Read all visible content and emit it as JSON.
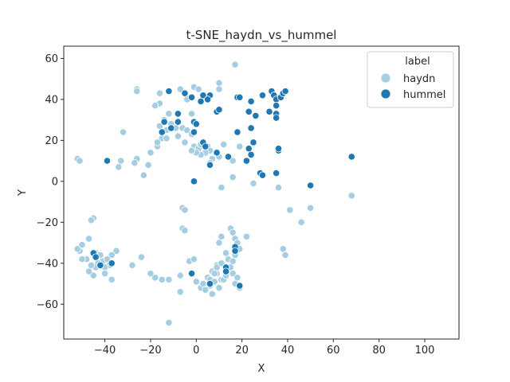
{
  "chart_data": {
    "type": "scatter",
    "title": "t-SNE_haydn_vs_hummel",
    "xlabel": "X",
    "ylabel": "Y",
    "xlim": [
      -58,
      115
    ],
    "ylim": [
      -77,
      66
    ],
    "xticks": [
      "−40",
      "−20",
      "0",
      "20",
      "40",
      "60",
      "80",
      "100"
    ],
    "xtick_values": [
      -40,
      -20,
      0,
      20,
      40,
      60,
      80,
      100
    ],
    "yticks": [
      "−60",
      "−40",
      "−20",
      "0",
      "20",
      "40",
      "60"
    ],
    "ytick_values": [
      -60,
      -40,
      -20,
      0,
      20,
      40,
      60
    ],
    "grid": false,
    "legend": {
      "title": "label",
      "placement": "top-right",
      "entries": [
        "haydn",
        "hummel"
      ]
    },
    "series": [
      {
        "name": "haydn",
        "color": "#a6cee3",
        "points": [
          [
            17,
            57
          ],
          [
            10,
            48
          ],
          [
            10,
            45
          ],
          [
            -1,
            46
          ],
          [
            1,
            45
          ],
          [
            -7,
            45
          ],
          [
            -26,
            45
          ],
          [
            -26,
            44
          ],
          [
            -16,
            43
          ],
          [
            -16,
            38
          ],
          [
            -18,
            37
          ],
          [
            -4,
            40
          ],
          [
            -2,
            33
          ],
          [
            -12,
            33
          ],
          [
            -14,
            30
          ],
          [
            -11,
            28
          ],
          [
            -16,
            27
          ],
          [
            -13,
            25
          ],
          [
            -9,
            26
          ],
          [
            -6,
            26
          ],
          [
            -4,
            25
          ],
          [
            -2,
            23
          ],
          [
            -8,
            22
          ],
          [
            -15,
            21
          ],
          [
            -13,
            21
          ],
          [
            -17,
            17
          ],
          [
            -17,
            19
          ],
          [
            -20,
            14
          ],
          [
            -21,
            8
          ],
          [
            -26,
            11
          ],
          [
            -27,
            9
          ],
          [
            -23,
            3
          ],
          [
            -33,
            10
          ],
          [
            -34,
            7
          ],
          [
            -32,
            24
          ],
          [
            -52,
            11
          ],
          [
            -51,
            10
          ],
          [
            -5,
            19
          ],
          [
            -1,
            17
          ],
          [
            1,
            16
          ],
          [
            2,
            18
          ],
          [
            3,
            19
          ],
          [
            5,
            17
          ],
          [
            6,
            15
          ],
          [
            4,
            14
          ],
          [
            2,
            13
          ],
          [
            0,
            14
          ],
          [
            -2,
            15
          ],
          [
            7,
            11
          ],
          [
            6,
            9
          ],
          [
            10,
            12
          ],
          [
            12,
            18
          ],
          [
            19,
            17
          ],
          [
            16,
            10
          ],
          [
            16,
            2
          ],
          [
            11,
            -3
          ],
          [
            25,
            -1
          ],
          [
            36,
            -3
          ],
          [
            41,
            -14
          ],
          [
            46,
            -20
          ],
          [
            50,
            -13
          ],
          [
            68,
            -7
          ],
          [
            38,
            -33
          ],
          [
            39,
            -36
          ],
          [
            -6,
            -13
          ],
          [
            -5,
            -14
          ],
          [
            -6,
            -23
          ],
          [
            -5,
            -24
          ],
          [
            -3,
            -39
          ],
          [
            -1,
            -38
          ],
          [
            -7,
            -46
          ],
          [
            -7,
            -54
          ],
          [
            -12,
            -48
          ],
          [
            -15,
            -48
          ],
          [
            -18,
            -47
          ],
          [
            -20,
            -45
          ],
          [
            -12,
            -69
          ],
          [
            -28,
            -41
          ],
          [
            -24,
            -37
          ],
          [
            -35,
            -34
          ],
          [
            -37,
            -36
          ],
          [
            -38,
            -41
          ],
          [
            -37,
            -48
          ],
          [
            -40,
            -42
          ],
          [
            -41,
            -39
          ],
          [
            -43,
            -40
          ],
          [
            -44,
            -42
          ],
          [
            -46,
            -41
          ],
          [
            -45,
            -46
          ],
          [
            -47,
            -44
          ],
          [
            -48,
            -38
          ],
          [
            -50,
            -38
          ],
          [
            -51,
            -34
          ],
          [
            -52,
            -33
          ],
          [
            -50,
            -31
          ],
          [
            -47,
            -28
          ],
          [
            -45,
            -18
          ],
          [
            -46,
            -19
          ],
          [
            -44,
            -35
          ],
          [
            -42,
            -36
          ],
          [
            -39,
            -38
          ],
          [
            -40,
            -45
          ],
          [
            0,
            -49
          ],
          [
            2,
            -52
          ],
          [
            3,
            -50
          ],
          [
            5,
            -47
          ],
          [
            6,
            -48
          ],
          [
            8,
            -49
          ],
          [
            6,
            -51
          ],
          [
            4,
            -53
          ],
          [
            7,
            -55
          ],
          [
            10,
            -52
          ],
          [
            11,
            -48
          ],
          [
            9,
            -45
          ],
          [
            7,
            -44
          ],
          [
            9,
            -41
          ],
          [
            10,
            -30
          ],
          [
            11,
            -27
          ],
          [
            13,
            -35
          ],
          [
            14,
            -38
          ],
          [
            15,
            -23
          ],
          [
            16,
            -25
          ],
          [
            17,
            -28
          ],
          [
            18,
            -30
          ],
          [
            19,
            -33
          ],
          [
            17,
            -36
          ],
          [
            16,
            -39
          ],
          [
            15,
            -42
          ],
          [
            16,
            -45
          ],
          [
            18,
            -47
          ],
          [
            17,
            -50
          ],
          [
            19,
            -52
          ],
          [
            22,
            -27
          ],
          [
            12,
            -48
          ],
          [
            13,
            -46
          ],
          [
            8,
            -45
          ],
          [
            9,
            -42
          ],
          [
            11,
            -40
          ]
        ]
      },
      {
        "name": "hummel",
        "color": "#1f78b4",
        "points": [
          [
            -12,
            44
          ],
          [
            -5,
            43
          ],
          [
            -2,
            41
          ],
          [
            3,
            42
          ],
          [
            6,
            42
          ],
          [
            5,
            40
          ],
          [
            2,
            39
          ],
          [
            9,
            34
          ],
          [
            10,
            35
          ],
          [
            -8,
            33
          ],
          [
            -14,
            29
          ],
          [
            -15,
            24
          ],
          [
            -11,
            26
          ],
          [
            -8,
            29
          ],
          [
            -1,
            29
          ],
          [
            0,
            28
          ],
          [
            -1,
            24
          ],
          [
            3,
            19
          ],
          [
            4,
            17
          ],
          [
            6,
            8
          ],
          [
            9,
            14
          ],
          [
            -1,
            0
          ],
          [
            -39,
            10
          ],
          [
            14,
            12
          ],
          [
            18,
            41
          ],
          [
            19,
            41
          ],
          [
            24,
            39
          ],
          [
            23,
            34
          ],
          [
            26,
            32
          ],
          [
            24,
            26
          ],
          [
            18,
            24
          ],
          [
            23,
            16
          ],
          [
            25,
            19
          ],
          [
            24,
            13
          ],
          [
            22,
            10
          ],
          [
            28,
            4
          ],
          [
            29,
            3
          ],
          [
            29,
            42
          ],
          [
            33,
            44
          ],
          [
            34,
            42
          ],
          [
            35,
            40
          ],
          [
            37,
            41
          ],
          [
            38,
            43
          ],
          [
            39,
            44
          ],
          [
            35,
            37
          ],
          [
            32,
            34
          ],
          [
            35,
            33
          ],
          [
            35,
            31
          ],
          [
            36,
            15
          ],
          [
            36,
            16
          ],
          [
            35,
            4
          ],
          [
            50,
            -2
          ],
          [
            68,
            12
          ],
          [
            -45,
            -35
          ],
          [
            -44,
            -37
          ],
          [
            -37,
            -40
          ],
          [
            -42,
            -41
          ],
          [
            13,
            -42
          ],
          [
            13,
            -44
          ],
          [
            17,
            -32
          ],
          [
            17,
            -34
          ],
          [
            19,
            -51
          ],
          [
            -2,
            -45
          ],
          [
            6,
            -50
          ]
        ]
      }
    ]
  }
}
